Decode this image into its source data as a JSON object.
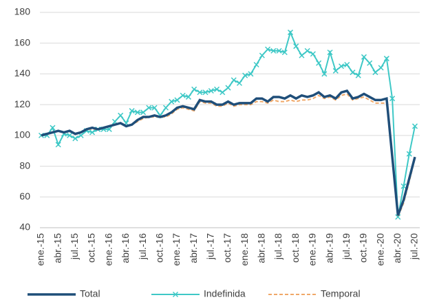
{
  "chart_data": {
    "type": "line",
    "categories": [
      "ene.-15",
      null,
      null,
      "abr.-15",
      null,
      null,
      "jul.-15",
      null,
      null,
      "oct.-15",
      null,
      null,
      "ene.-16",
      null,
      null,
      "abr.-16",
      null,
      null,
      "jul.-16",
      null,
      null,
      "oct.-16",
      null,
      null,
      "ene.-17",
      null,
      null,
      "abr.-17",
      null,
      null,
      "jul.-17",
      null,
      null,
      "oct.-17",
      null,
      null,
      "ene.-18",
      null,
      null,
      "abr.-18",
      null,
      null,
      "jul.-18",
      null,
      null,
      "oct.-18",
      null,
      null,
      "ene.-19",
      null,
      null,
      "abr.-19",
      null,
      null,
      "jul.-19",
      null,
      null,
      "oct.-19",
      null,
      null,
      "ene.-20",
      null,
      null,
      "abr.-20",
      null,
      null,
      "jul.-20"
    ],
    "series": [
      {
        "name": "Total",
        "color": "#1f4e79",
        "values": [
          100,
          101,
          102,
          103,
          102,
          103,
          101,
          102,
          104,
          105,
          104,
          105,
          106,
          107,
          108,
          106,
          107,
          110,
          112,
          112,
          113,
          112,
          113,
          115,
          118,
          119,
          118,
          117,
          123,
          122,
          122,
          120,
          120,
          122,
          120,
          121,
          121,
          121,
          124,
          124,
          122,
          125,
          125,
          124,
          126,
          124,
          126,
          125,
          126,
          128,
          125,
          126,
          124,
          128,
          129,
          124,
          125,
          127,
          125,
          123,
          123,
          124,
          86,
          48,
          58,
          72,
          86
        ]
      },
      {
        "name": "Indefinida",
        "color": "#3ec8c6",
        "values": [
          100,
          100,
          105,
          94,
          101,
          100,
          98,
          100,
          103,
          102,
          104,
          104,
          104,
          109,
          113,
          108,
          116,
          115,
          115,
          118,
          118,
          113,
          118,
          122,
          123,
          126,
          125,
          130,
          128,
          128,
          129,
          130,
          128,
          131,
          136,
          134,
          139,
          140,
          146,
          152,
          156,
          155,
          155,
          154,
          167,
          158,
          152,
          155,
          153,
          147,
          140,
          154,
          142,
          145,
          146,
          141,
          139,
          151,
          147,
          141,
          144,
          150,
          124,
          47,
          67,
          88,
          106
        ]
      },
      {
        "name": "Temporal",
        "color": "#f0a868",
        "values": [
          100,
          101,
          102,
          103,
          102,
          103,
          101,
          102,
          104,
          104,
          104,
          105,
          106,
          107,
          108,
          106,
          107,
          109,
          111,
          112,
          112,
          112,
          112,
          114,
          117,
          118,
          117,
          116,
          122,
          121,
          121,
          119,
          119,
          121,
          119,
          120,
          120,
          120,
          122,
          122,
          121,
          123,
          122,
          122,
          123,
          122,
          123,
          123,
          124,
          126,
          124,
          125,
          123,
          126,
          127,
          123,
          124,
          125,
          123,
          121,
          121,
          121,
          85,
          47,
          56,
          70,
          85
        ]
      }
    ],
    "ylim": [
      40,
      180
    ],
    "yticks": [
      40,
      60,
      80,
      100,
      120,
      140,
      160,
      180
    ],
    "grid": true,
    "legend": "bottom"
  }
}
